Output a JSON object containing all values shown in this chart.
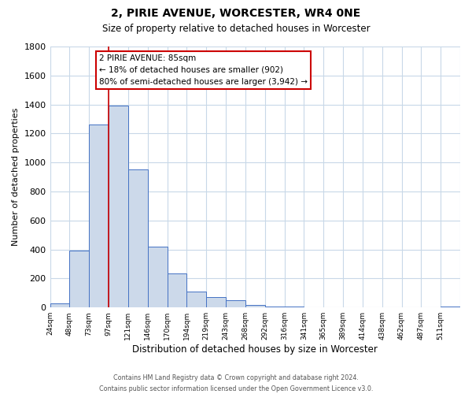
{
  "title": "2, PIRIE AVENUE, WORCESTER, WR4 0NE",
  "subtitle": "Size of property relative to detached houses in Worcester",
  "xlabel": "Distribution of detached houses by size in Worcester",
  "ylabel": "Number of detached properties",
  "bar_color": "#ccd9ea",
  "bar_edge_color": "#4472c4",
  "bin_labels": [
    "24sqm",
    "48sqm",
    "73sqm",
    "97sqm",
    "121sqm",
    "146sqm",
    "170sqm",
    "194sqm",
    "219sqm",
    "243sqm",
    "268sqm",
    "292sqm",
    "316sqm",
    "341sqm",
    "365sqm",
    "389sqm",
    "414sqm",
    "438sqm",
    "462sqm",
    "487sqm",
    "511sqm"
  ],
  "bar_values": [
    30,
    390,
    1260,
    1390,
    950,
    420,
    235,
    110,
    70,
    50,
    15,
    5,
    5,
    2,
    1,
    0,
    0,
    0,
    0,
    0,
    5
  ],
  "ylim": [
    0,
    1800
  ],
  "yticks": [
    0,
    200,
    400,
    600,
    800,
    1000,
    1200,
    1400,
    1600,
    1800
  ],
  "annotation_text_line1": "2 PIRIE AVENUE: 85sqm",
  "annotation_text_line2": "← 18% of detached houses are smaller (902)",
  "annotation_text_line3": "80% of semi-detached houses are larger (3,942) →",
  "footer_line1": "Contains HM Land Registry data © Crown copyright and database right 2024.",
  "footer_line2": "Contains public sector information licensed under the Open Government Licence v3.0.",
  "annotation_box_color": "#ffffff",
  "annotation_box_edge_color": "#cc0000",
  "property_line_color": "#cc0000",
  "background_color": "#ffffff",
  "grid_color": "#c8d8e8",
  "property_line_bin_index": 3
}
